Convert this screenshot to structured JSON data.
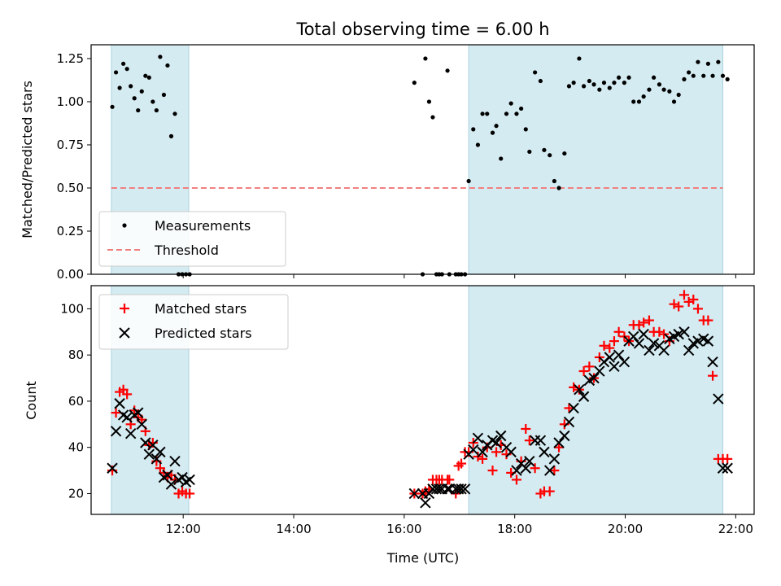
{
  "chart_data": {
    "title": "Total observing time = 6.00 h",
    "xlabel": "Time (UTC)",
    "x_ticks": [
      "12:00",
      "14:00",
      "16:00",
      "18:00",
      "20:00",
      "22:00"
    ],
    "xlim": [
      "10:20",
      "22:20"
    ],
    "observing_windows": [
      [
        "10:42",
        "12:06"
      ],
      [
        "17:10",
        "21:46"
      ]
    ],
    "window_color": "#d4ebf1",
    "panels": [
      {
        "type": "scatter",
        "ylabel": "Matched/Predicted stars",
        "ylim": [
          0,
          1.33
        ],
        "y_ticks": [
          "0.00",
          "0.25",
          "0.50",
          "0.75",
          "1.00",
          "1.25"
        ],
        "legend_position": "lower-left",
        "series": [
          {
            "name": "Measurements",
            "marker": "dot",
            "color": "#000000",
            "x": [
              "10:43",
              "10:47",
              "10:51",
              "10:55",
              "10:59",
              "11:03",
              "11:07",
              "11:11",
              "11:15",
              "11:19",
              "11:23",
              "11:27",
              "11:31",
              "11:35",
              "11:39",
              "11:43",
              "11:47",
              "11:51",
              "11:55",
              "11:59",
              "12:03",
              "12:07",
              "16:11",
              "16:20",
              "16:23",
              "16:27",
              "16:31",
              "16:35",
              "16:38",
              "16:41",
              "16:47",
              "16:49",
              "16:56",
              "16:59",
              "17:02",
              "17:06",
              "17:10",
              "17:15",
              "17:20",
              "17:25",
              "17:30",
              "17:36",
              "17:40",
              "17:45",
              "17:51",
              "17:56",
              "18:02",
              "18:07",
              "18:12",
              "18:16",
              "18:22",
              "18:28",
              "18:32",
              "18:38",
              "18:43",
              "18:48",
              "18:54",
              "18:59",
              "19:04",
              "19:10",
              "19:15",
              "19:21",
              "19:26",
              "19:32",
              "19:37",
              "19:43",
              "19:48",
              "19:53",
              "19:59",
              "20:04",
              "20:09",
              "20:15",
              "20:20",
              "20:26",
              "20:31",
              "20:37",
              "20:42",
              "20:48",
              "20:53",
              "20:58",
              "21:04",
              "21:09",
              "21:14",
              "21:19",
              "21:25",
              "21:30",
              "21:35",
              "21:41",
              "21:46",
              "21:51"
            ],
            "y": [
              0.97,
              1.17,
              1.08,
              1.22,
              1.19,
              1.09,
              1.02,
              0.95,
              1.06,
              1.15,
              1.14,
              1.0,
              0.95,
              1.26,
              1.04,
              1.21,
              0.8,
              0.93,
              0,
              0,
              0,
              0,
              1.11,
              0,
              1.25,
              1.0,
              0.91,
              0,
              0,
              0,
              1.18,
              0,
              0,
              0,
              0,
              0,
              0.54,
              0.84,
              0.75,
              0.93,
              0.93,
              0.82,
              0.86,
              0.67,
              0.93,
              0.99,
              0.93,
              0.96,
              0.84,
              0.71,
              1.17,
              1.12,
              0.72,
              0.69,
              0.54,
              0.5,
              0.7,
              1.09,
              1.11,
              1.25,
              1.09,
              1.12,
              1.1,
              1.07,
              1.11,
              1.08,
              1.11,
              1.14,
              1.11,
              1.14,
              1.0,
              1.0,
              1.03,
              1.07,
              1.14,
              1.1,
              1.07,
              1.06,
              1.0,
              1.04,
              1.13,
              1.17,
              1.15,
              1.23,
              1.15,
              1.22,
              1.15,
              1.23,
              1.15,
              1.13
            ]
          },
          {
            "name": "Threshold",
            "marker": "dashed-line",
            "color": "#f08080",
            "x": [
              "10:42",
              "21:46"
            ],
            "y": [
              0.5,
              0.5
            ]
          }
        ]
      },
      {
        "type": "scatter",
        "ylabel": "Count",
        "ylim": [
          11,
          110
        ],
        "y_ticks": [
          "20",
          "40",
          "60",
          "80",
          "100"
        ],
        "legend_position": "top-left",
        "series": [
          {
            "name": "Matched stars",
            "marker": "plus",
            "color": "#ff0000",
            "x": [
              "10:43",
              "10:47",
              "10:51",
              "10:55",
              "10:59",
              "11:03",
              "11:07",
              "11:11",
              "11:15",
              "11:19",
              "11:23",
              "11:27",
              "11:31",
              "11:35",
              "11:39",
              "11:43",
              "11:47",
              "11:51",
              "11:55",
              "11:59",
              "12:03",
              "12:07",
              "16:11",
              "16:20",
              "16:23",
              "16:27",
              "16:31",
              "16:35",
              "16:38",
              "16:41",
              "16:47",
              "16:49",
              "16:56",
              "16:59",
              "17:02",
              "17:06",
              "17:10",
              "17:15",
              "17:20",
              "17:25",
              "17:30",
              "17:36",
              "17:40",
              "17:45",
              "17:51",
              "17:56",
              "18:02",
              "18:07",
              "18:12",
              "18:16",
              "18:22",
              "18:28",
              "18:32",
              "18:38",
              "18:43",
              "18:48",
              "18:54",
              "18:59",
              "19:04",
              "19:10",
              "19:15",
              "19:21",
              "19:26",
              "19:32",
              "19:37",
              "19:43",
              "19:48",
              "19:53",
              "19:59",
              "20:04",
              "20:09",
              "20:15",
              "20:20",
              "20:26",
              "20:31",
              "20:37",
              "20:42",
              "20:48",
              "20:53",
              "20:58",
              "21:04",
              "21:09",
              "21:14",
              "21:19",
              "21:25",
              "21:30",
              "21:35",
              "21:41",
              "21:46",
              "21:51"
            ],
            "y": [
              30,
              55,
              64,
              65,
              63,
              50,
              56,
              53,
              52,
              47,
              41,
              42,
              34,
              31,
              29,
              27,
              28,
              26,
              20,
              21,
              20,
              20,
              20,
              20,
              21,
              22,
              26,
              26,
              26,
              26,
              26,
              26,
              20,
              32,
              33,
              38,
              38,
              42,
              36,
              35,
              40,
              30,
              38,
              41,
              37,
              29,
              26,
              34,
              48,
              43,
              31,
              20,
              21,
              21,
              30,
              40,
              50,
              57,
              66,
              65,
              73,
              75,
              70,
              79,
              84,
              83,
              86,
              90,
              88,
              86,
              93,
              93,
              94,
              95,
              90,
              90,
              89,
              86,
              102,
              101,
              106,
              103,
              104,
              100,
              95,
              95,
              71,
              35,
              35,
              35
            ]
          },
          {
            "name": "Predicted stars",
            "marker": "x",
            "color": "#000000",
            "x": [
              "10:43",
              "10:47",
              "10:51",
              "10:55",
              "10:59",
              "11:03",
              "11:07",
              "11:11",
              "11:15",
              "11:19",
              "11:23",
              "11:27",
              "11:31",
              "11:35",
              "11:39",
              "11:43",
              "11:47",
              "11:51",
              "11:55",
              "11:59",
              "12:03",
              "12:07",
              "16:11",
              "16:20",
              "16:23",
              "16:27",
              "16:31",
              "16:35",
              "16:38",
              "16:41",
              "16:47",
              "16:49",
              "16:56",
              "16:59",
              "17:02",
              "17:06",
              "17:10",
              "17:15",
              "17:20",
              "17:25",
              "17:30",
              "17:36",
              "17:40",
              "17:45",
              "17:51",
              "17:56",
              "18:02",
              "18:07",
              "18:12",
              "18:16",
              "18:22",
              "18:28",
              "18:32",
              "18:38",
              "18:43",
              "18:48",
              "18:54",
              "18:59",
              "19:04",
              "19:10",
              "19:15",
              "19:21",
              "19:26",
              "19:32",
              "19:37",
              "19:43",
              "19:48",
              "19:53",
              "19:59",
              "20:04",
              "20:09",
              "20:15",
              "20:20",
              "20:26",
              "20:31",
              "20:37",
              "20:42",
              "20:48",
              "20:53",
              "20:58",
              "21:04",
              "21:09",
              "21:14",
              "21:19",
              "21:25",
              "21:30",
              "21:35",
              "21:41",
              "21:46",
              "21:51"
            ],
            "y": [
              31,
              47,
              59,
              54,
              53,
              46,
              54,
              55,
              50,
              42,
              37,
              41,
              35,
              38,
              27,
              28,
              24,
              34,
              26,
              27,
              25,
              26,
              20,
              20,
              16,
              20,
              22,
              22,
              22,
              22,
              22,
              22,
              22,
              22,
              22,
              22,
              37,
              39,
              44,
              38,
              41,
              43,
              42,
              45,
              40,
              38,
              30,
              33,
              31,
              34,
              43,
              43,
              38,
              30,
              35,
              42,
              45,
              51,
              57,
              65,
              62,
              69,
              70,
              73,
              77,
              79,
              75,
              80,
              77,
              86,
              88,
              85,
              89,
              82,
              85,
              84,
              82,
              87,
              88,
              89,
              90,
              82,
              85,
              86,
              87,
              86,
              77,
              61,
              31,
              31
            ]
          }
        ]
      }
    ]
  }
}
